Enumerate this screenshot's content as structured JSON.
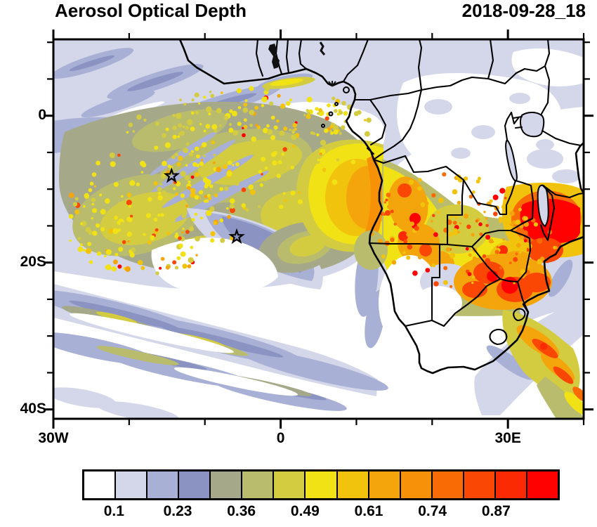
{
  "title": "Aerosol Optical Depth",
  "timestamp": "2018-09-28_18",
  "axes": {
    "x": {
      "ticks": [
        {
          "v": -30,
          "label": "30W"
        },
        {
          "v": -20
        },
        {
          "v": -10
        },
        {
          "v": 0,
          "label": "0"
        },
        {
          "v": 10
        },
        {
          "v": 20
        },
        {
          "v": 30,
          "label": "30E"
        },
        {
          "v": 40
        }
      ]
    },
    "y": {
      "ticks": [
        {
          "v": 10
        },
        {
          "v": 5
        },
        {
          "v": 0,
          "label": "0"
        },
        {
          "v": -5
        },
        {
          "v": -10
        },
        {
          "v": -15
        },
        {
          "v": -20,
          "label": "20S"
        },
        {
          "v": -25
        },
        {
          "v": -30
        },
        {
          "v": -35
        },
        {
          "v": -40,
          "label": "40S"
        }
      ]
    }
  },
  "colorbar": {
    "colors": [
      "#ffffff",
      "#d3d7e9",
      "#a9b0d5",
      "#8a93c2",
      "#a6a989",
      "#babc6d",
      "#d3cc41",
      "#f1e215",
      "#f2c30d",
      "#f5a50c",
      "#f79108",
      "#f96c05",
      "#fa4703",
      "#fb2a02",
      "#fe0100"
    ],
    "labels": [
      {
        "text": "0.1",
        "boundary": 1
      },
      {
        "text": "0.23",
        "boundary": 3
      },
      {
        "text": "0.36",
        "boundary": 5
      },
      {
        "text": "0.49",
        "boundary": 7
      },
      {
        "text": "0.61",
        "boundary": 9
      },
      {
        "text": "0.74",
        "boundary": 11
      },
      {
        "text": "0.87",
        "boundary": 13
      }
    ]
  },
  "chart_data": {
    "type": "heatmap",
    "variable": "Aerosol Optical Depth (filled contour map)",
    "timestamp": "2018-09-28_18",
    "lon_range_deg": [
      -30,
      40
    ],
    "lat_range_deg": [
      -41,
      10.4
    ],
    "x_tick_labels": [
      "30W",
      "0",
      "30E"
    ],
    "y_tick_labels": [
      "0",
      "20S",
      "40S"
    ],
    "n_color_bins": 15,
    "colorbar_labels": [
      0.1,
      0.23,
      0.36,
      0.49,
      0.61,
      0.74,
      0.87
    ],
    "markers": [
      {
        "shape": "star",
        "lon_deg": -14.4,
        "lat_deg": -8.2
      },
      {
        "shape": "star",
        "lon_deg": -5.8,
        "lat_deg": -16.5
      }
    ],
    "features": [
      "Dense speckled smoke field (AOD 0.4-0.9, local red >0.9 cores) over tropical South Atlantic west of ~5E between ~2S and 18S",
      "Solid yellow-orange plume (AOD 0.5-0.8) hugging the Gabon-Congo-Angola coast around 5S-15S",
      "Orange-red hotspots (AOD >0.8) over interior Angola, Zambia and Zimbabwe-Mozambique border",
      "Intense red maximum (AOD >0.9) around Lake Malawi / northern Mozambique near the right edge",
      "Smoke outflow band sweeping southeast off the South Africa / Mozambique coast toward the bottom-right corner",
      "Very low AOD (<0.1, white) over the south-central Atlantic and interior South Africa",
      "Lavender/blue bands (AOD 0.1-0.36) across the northern ocean, central DRC edges and SW frontal streaks"
    ]
  }
}
